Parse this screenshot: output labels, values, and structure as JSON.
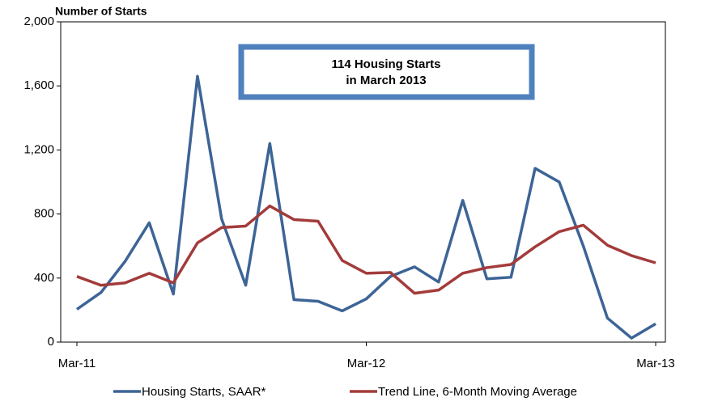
{
  "chart_data": {
    "type": "line",
    "y_axis_title": "Number of Starts",
    "annotation": [
      "114 Housing Starts",
      "in March 2013"
    ],
    "categories": [
      "Mar-11",
      null,
      null,
      null,
      null,
      null,
      null,
      null,
      null,
      null,
      null,
      null,
      "Mar-12",
      null,
      null,
      null,
      null,
      null,
      null,
      null,
      null,
      null,
      null,
      null,
      "Mar-13"
    ],
    "series": [
      {
        "name": "Housing Starts, SAAR*",
        "color": "#3d6496",
        "values": [
          205,
          310,
          505,
          745,
          300,
          1660,
          770,
          355,
          1240,
          265,
          255,
          195,
          270,
          410,
          470,
          375,
          885,
          395,
          405,
          1085,
          1000,
          600,
          150,
          25,
          114
        ]
      },
      {
        "name": "Trend Line, 6-Month Moving Average",
        "color": "#a33b3b",
        "values": [
          410,
          355,
          370,
          430,
          370,
          620,
          715,
          725,
          850,
          765,
          755,
          510,
          430,
          435,
          305,
          325,
          430,
          465,
          485,
          595,
          690,
          730,
          605,
          540,
          495
        ]
      }
    ],
    "ylim": [
      0,
      2000
    ],
    "yticks": [
      0,
      {
        "value": 400,
        "label": "400"
      },
      {
        "value": 800,
        "label": "800"
      },
      {
        "value": 1200,
        "label": "1,200"
      },
      {
        "value": 1600,
        "label": "1,600"
      },
      {
        "value": 2000,
        "label": "2,000"
      }
    ],
    "legend": "bottom"
  }
}
